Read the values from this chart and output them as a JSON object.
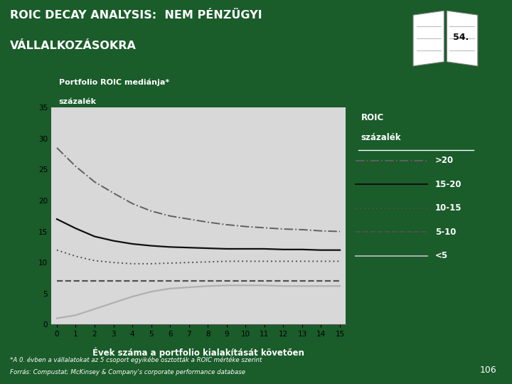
{
  "title_line1": "ROIC DECAY ANALYSIS:  NEM PÉNZÜGYI",
  "title_line2": "VÁLLALKOZÁSOKRA",
  "subtitle1": "Portfolio ROIC mediánja*",
  "subtitle2": "százalék",
  "xlabel": "Évek száma a portfolio kialakítását követően",
  "footnote1": "*A 0. évben a vállalatokat az 5 csoport egyikébe osztották a ROIC mértéke szerint",
  "footnote2": "Forrás: Compustat; McKinsey & Company's corporate performance database",
  "page_number": "106",
  "slide_number": "54.",
  "legend_labels": [
    ">20",
    "15-20",
    "10-15",
    "5-10",
    "<5"
  ],
  "bg_color": "#1a5c2a",
  "plot_bg_color": "#d8d8d8",
  "x": [
    0,
    1,
    2,
    3,
    4,
    5,
    6,
    7,
    8,
    9,
    10,
    11,
    12,
    13,
    14,
    15
  ],
  "series_gt20": [
    28.5,
    25.5,
    23.0,
    21.2,
    19.5,
    18.3,
    17.5,
    17.0,
    16.5,
    16.1,
    15.8,
    15.6,
    15.4,
    15.3,
    15.1,
    15.0
  ],
  "series_15_20": [
    17.0,
    15.5,
    14.2,
    13.5,
    13.0,
    12.7,
    12.5,
    12.4,
    12.3,
    12.2,
    12.2,
    12.2,
    12.1,
    12.1,
    12.0,
    12.0
  ],
  "series_10_15": [
    12.0,
    11.0,
    10.3,
    10.0,
    9.8,
    9.8,
    9.9,
    10.0,
    10.1,
    10.2,
    10.2,
    10.2,
    10.2,
    10.2,
    10.2,
    10.2
  ],
  "series_5_10": [
    7.0,
    7.0,
    7.0,
    7.0,
    7.0,
    7.0,
    7.0,
    7.0,
    7.0,
    7.0,
    7.0,
    7.0,
    7.0,
    7.0,
    7.0,
    7.0
  ],
  "series_lt5": [
    1.0,
    1.5,
    2.5,
    3.5,
    4.5,
    5.3,
    5.8,
    6.0,
    6.2,
    6.3,
    6.3,
    6.3,
    6.2,
    6.2,
    6.2,
    6.2
  ],
  "ylim": [
    0,
    35
  ],
  "yticks": [
    0,
    5,
    10,
    15,
    20,
    25,
    30,
    35
  ],
  "xticks": [
    0,
    1,
    2,
    3,
    4,
    5,
    6,
    7,
    8,
    9,
    10,
    11,
    12,
    13,
    14,
    15
  ]
}
